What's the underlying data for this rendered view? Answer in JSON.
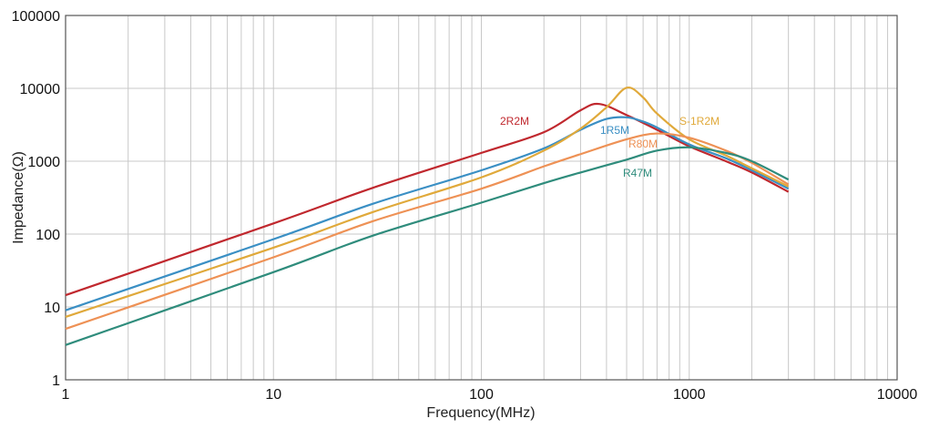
{
  "chart_data": {
    "type": "line",
    "xlabel": "Frequency(MHz)",
    "ylabel": "Impedance(Ω)",
    "xscale": "log",
    "yscale": "log",
    "xlim": [
      1,
      10000
    ],
    "ylim": [
      1,
      100000
    ],
    "grid": true,
    "xticks": [
      "1",
      "10",
      "100",
      "1000",
      "10000"
    ],
    "yticks": [
      "1",
      "10",
      "100",
      "1000",
      "10000",
      "100000"
    ],
    "series": [
      {
        "name": "2R2M",
        "color": "#c0282e",
        "x": [
          1,
          10,
          30,
          100,
          200,
          300,
          370,
          500,
          700,
          1000,
          1500,
          2000,
          3000
        ],
        "y": [
          14.5,
          140,
          430,
          1300,
          2500,
          5000,
          6100,
          4300,
          2700,
          1600,
          1000,
          700,
          380
        ]
      },
      {
        "name": "1R5M",
        "color": "#3a8fc4",
        "x": [
          1,
          10,
          30,
          100,
          200,
          300,
          400,
          500,
          600,
          700,
          1000,
          1500,
          2000,
          3000
        ],
        "y": [
          9,
          85,
          260,
          750,
          1500,
          2700,
          3800,
          4000,
          3500,
          2900,
          1700,
          1100,
          750,
          420
        ]
      },
      {
        "name": "S-1R2M",
        "color": "#e0a93a",
        "x": [
          1,
          10,
          30,
          100,
          200,
          300,
          400,
          500,
          600,
          700,
          1000,
          1500,
          2000,
          3000
        ],
        "y": [
          7.3,
          65,
          200,
          600,
          1400,
          2800,
          5500,
          10200,
          7500,
          4500,
          2000,
          1200,
          800,
          450
        ]
      },
      {
        "name": "R80M",
        "color": "#ee9155",
        "x": [
          1,
          10,
          30,
          100,
          200,
          300,
          500,
          700,
          1000,
          1500,
          2000,
          3000
        ],
        "y": [
          5,
          48,
          150,
          420,
          850,
          1250,
          2000,
          2400,
          2100,
          1400,
          950,
          480
        ]
      },
      {
        "name": "R47M",
        "color": "#2f8c7c",
        "x": [
          1,
          10,
          30,
          100,
          200,
          300,
          500,
          700,
          1000,
          1500,
          2000,
          3000
        ],
        "y": [
          3,
          30,
          95,
          270,
          500,
          700,
          1050,
          1400,
          1550,
          1300,
          1000,
          560
        ]
      }
    ]
  }
}
